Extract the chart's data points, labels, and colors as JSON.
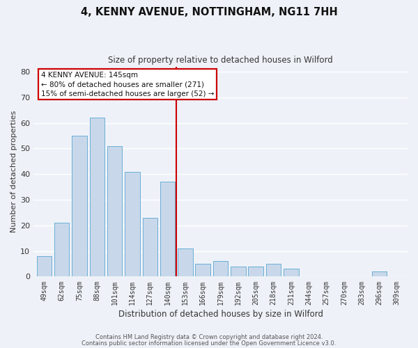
{
  "title": "4, KENNY AVENUE, NOTTINGHAM, NG11 7HH",
  "subtitle": "Size of property relative to detached houses in Wilford",
  "xlabel": "Distribution of detached houses by size in Wilford",
  "ylabel": "Number of detached properties",
  "bar_labels": [
    "49sqm",
    "62sqm",
    "75sqm",
    "88sqm",
    "101sqm",
    "114sqm",
    "127sqm",
    "140sqm",
    "153sqm",
    "166sqm",
    "179sqm",
    "192sqm",
    "205sqm",
    "218sqm",
    "231sqm",
    "244sqm",
    "257sqm",
    "270sqm",
    "283sqm",
    "296sqm",
    "309sqm"
  ],
  "bar_values": [
    8,
    21,
    55,
    62,
    51,
    41,
    23,
    37,
    11,
    5,
    6,
    4,
    4,
    5,
    3,
    0,
    0,
    0,
    0,
    2,
    0
  ],
  "bar_color": "#c8d8ea",
  "bar_edge_color": "#6aaed6",
  "vline_x": 7.5,
  "vline_color": "#cc0000",
  "annotation_title": "4 KENNY AVENUE: 145sqm",
  "annotation_line1": "← 80% of detached houses are smaller (271)",
  "annotation_line2": "15% of semi-detached houses are larger (52) →",
  "annotation_box_color": "#cc0000",
  "ylim": [
    0,
    82
  ],
  "yticks": [
    0,
    10,
    20,
    30,
    40,
    50,
    60,
    70,
    80
  ],
  "footer1": "Contains HM Land Registry data © Crown copyright and database right 2024.",
  "footer2": "Contains public sector information licensed under the Open Government Licence v3.0.",
  "bg_color": "#eef2f8",
  "grid_color": "#ffffff"
}
